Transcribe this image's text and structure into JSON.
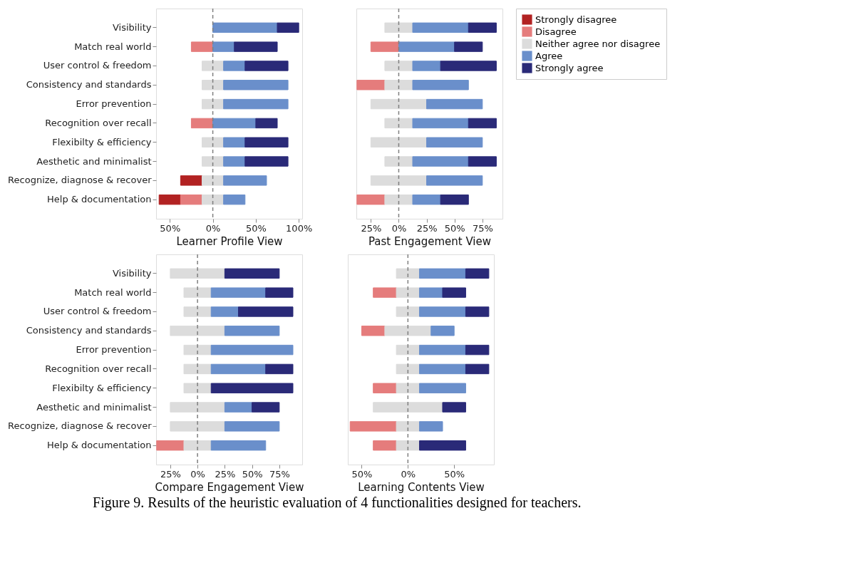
{
  "chart_data": [
    {
      "type": "bar",
      "orientation": "horizontal",
      "xlabel": "Learner Profile View",
      "categories": [
        "Visibility",
        "Match real world",
        "User control & freedom",
        "Consistency and standards",
        "Error prevention",
        "Recognition over recall",
        "Flexibilty & efficiency",
        "Aesthetic and minimalist",
        "Recognize, diagnose & recover",
        "Help & documentation"
      ],
      "xlim": [
        -66,
        104
      ],
      "xticks": [
        {
          "value": -50,
          "label": "50%"
        },
        {
          "value": 0,
          "label": "0%"
        },
        {
          "value": 50,
          "label": "50%"
        },
        {
          "value": 100,
          "label": "100%"
        }
      ],
      "grid": false,
      "legend": "right",
      "ref_lines": [
        {
          "axis": "x",
          "value": 0,
          "color": "#808080",
          "line_style": "dashed"
        }
      ],
      "series": [
        {
          "name": "Strongly disagree",
          "color": "#b22222",
          "values": [
            null,
            null,
            null,
            null,
            null,
            null,
            null,
            null,
            25,
            25
          ],
          "base": [
            null,
            null,
            null,
            null,
            null,
            null,
            null,
            null,
            -37.5,
            -62.5
          ]
        },
        {
          "name": "Disagree",
          "color": "#e57c7c",
          "values": [
            null,
            25,
            null,
            null,
            null,
            25,
            null,
            null,
            null,
            25
          ],
          "base": [
            null,
            -25,
            null,
            null,
            null,
            -25,
            null,
            null,
            null,
            -37.5
          ]
        },
        {
          "name": "Neither agree nor disagree",
          "color": "#dcdcdc",
          "values": [
            null,
            null,
            25,
            25,
            25,
            null,
            25,
            25,
            25,
            25
          ],
          "base": [
            null,
            null,
            -12.5,
            -12.5,
            -12.5,
            null,
            -12.5,
            -12.5,
            -12.5,
            -12.5
          ]
        },
        {
          "name": "Agree",
          "color": "#6a8fcb",
          "values": [
            75,
            25,
            25,
            75,
            75,
            50,
            25,
            25,
            50,
            25
          ],
          "base": [
            0,
            0,
            12.5,
            12.5,
            12.5,
            0,
            12.5,
            12.5,
            12.5,
            12.5
          ]
        },
        {
          "name": "Strongly agree",
          "color": "#2a2a78",
          "values": [
            25,
            50,
            50,
            null,
            null,
            25,
            50,
            50,
            null,
            null
          ],
          "base": [
            75,
            25,
            37.5,
            null,
            null,
            50,
            37.5,
            37.5,
            null,
            null
          ]
        }
      ]
    },
    {
      "type": "bar",
      "orientation": "horizontal",
      "xlabel": "Past Engagement View",
      "tick_labels": "x",
      "categories": [
        "Visibility",
        "Match real world",
        "User control & freedom",
        "Consistency and standards",
        "Error prevention",
        "Recognition over recall",
        "Flexibilty & efficiency",
        "Aesthetic and minimalist",
        "Recognize, diagnose & recover",
        "Help & documentation"
      ],
      "xlim": [
        -38,
        93
      ],
      "xticks": [
        {
          "value": -25,
          "label": "25%"
        },
        {
          "value": 0,
          "label": "0%"
        },
        {
          "value": 25,
          "label": "25%"
        },
        {
          "value": 50,
          "label": "50%"
        },
        {
          "value": 75,
          "label": "75%"
        }
      ],
      "grid": false,
      "legend": "right",
      "ref_lines": [
        {
          "axis": "x",
          "value": 0,
          "color": "#808080",
          "line_style": "dashed"
        }
      ],
      "series": [
        {
          "name": "Disagree",
          "color": "#e57c7c",
          "values": [
            null,
            25,
            null,
            25,
            null,
            null,
            null,
            null,
            null,
            25
          ],
          "base": [
            null,
            -25,
            null,
            -37.5,
            null,
            null,
            null,
            null,
            null,
            -37.5
          ]
        },
        {
          "name": "Neither agree nor disagree",
          "color": "#dcdcdc",
          "values": [
            25,
            null,
            25,
            25,
            50,
            25,
            50,
            25,
            50,
            25
          ],
          "base": [
            -12.5,
            null,
            -12.5,
            -12.5,
            -25,
            -12.5,
            -25,
            -12.5,
            -25,
            -12.5
          ]
        },
        {
          "name": "Agree",
          "color": "#6a8fcb",
          "values": [
            50,
            50,
            25,
            50,
            50,
            50,
            50,
            50,
            50,
            25
          ],
          "base": [
            12.5,
            0,
            12.5,
            12.5,
            25,
            12.5,
            25,
            12.5,
            25,
            12.5
          ]
        },
        {
          "name": "Strongly agree",
          "color": "#2a2a78",
          "values": [
            25,
            25,
            50,
            null,
            null,
            25,
            null,
            25,
            null,
            25
          ],
          "base": [
            62.5,
            50,
            37.5,
            null,
            null,
            62.5,
            null,
            62.5,
            null,
            37.5
          ]
        }
      ]
    },
    {
      "type": "bar",
      "orientation": "horizontal",
      "xlabel": "Compare Engagement View",
      "categories": [
        "Visibility",
        "Match real world",
        "User control & freedom",
        "Consistency and standards",
        "Error prevention",
        "Recognition over recall",
        "Flexibilty & efficiency",
        "Aesthetic and minimalist",
        "Recognize, diagnose & recover",
        "Help & documentation"
      ],
      "xlim": [
        -38,
        96
      ],
      "xticks": [
        {
          "value": -25,
          "label": "25%"
        },
        {
          "value": 0,
          "label": "0%"
        },
        {
          "value": 25,
          "label": "25%"
        },
        {
          "value": 50,
          "label": "50%"
        },
        {
          "value": 75,
          "label": "75%"
        }
      ],
      "grid": false,
      "legend": "right",
      "ref_lines": [
        {
          "axis": "x",
          "value": 0,
          "color": "#808080",
          "line_style": "dashed"
        }
      ],
      "series": [
        {
          "name": "Disagree",
          "color": "#e57c7c",
          "values": [
            null,
            null,
            null,
            null,
            null,
            null,
            null,
            null,
            null,
            25
          ],
          "base": [
            null,
            null,
            null,
            null,
            null,
            null,
            null,
            null,
            null,
            -37.5
          ]
        },
        {
          "name": "Neither agree nor disagree",
          "color": "#dcdcdc",
          "values": [
            50,
            25,
            25,
            50,
            25,
            25,
            25,
            50,
            50,
            25
          ],
          "base": [
            -25,
            -12.5,
            -12.5,
            -25,
            -12.5,
            -12.5,
            -12.5,
            -25,
            -25,
            -12.5
          ]
        },
        {
          "name": "Agree",
          "color": "#6a8fcb",
          "values": [
            null,
            50,
            25,
            50,
            75,
            50,
            null,
            25,
            50,
            50
          ],
          "base": [
            null,
            12.5,
            12.5,
            25,
            12.5,
            12.5,
            null,
            25,
            25,
            12.5
          ]
        },
        {
          "name": "Strongly agree",
          "color": "#2a2a78",
          "values": [
            50,
            25,
            50,
            null,
            null,
            25,
            75,
            25,
            null,
            null
          ],
          "base": [
            25,
            62.5,
            37.5,
            null,
            null,
            62.5,
            12.5,
            50,
            null,
            null
          ]
        }
      ]
    },
    {
      "type": "bar",
      "orientation": "horizontal",
      "xlabel": "Learning Contents View",
      "tick_labels": "x",
      "categories": [
        "Visibility",
        "Match real world",
        "User control & freedom",
        "Consistency and standards",
        "Error prevention",
        "Recognition over recall",
        "Flexibilty & efficiency",
        "Aesthetic and minimalist",
        "Recognize, diagnose & recover",
        "Help & documentation"
      ],
      "xlim": [
        -65,
        93
      ],
      "xticks": [
        {
          "value": -50,
          "label": "50%"
        },
        {
          "value": 0,
          "label": "0%"
        },
        {
          "value": 50,
          "label": "50%"
        }
      ],
      "grid": false,
      "legend": "right",
      "annotations": [
        "Figure 9. Results of the heuristic evaluation of 4 functionalities designed for teachers."
      ],
      "ref_lines": [
        {
          "axis": "x",
          "value": 0,
          "color": "#808080",
          "line_style": "dashed"
        }
      ],
      "series": [
        {
          "name": "Disagree",
          "color": "#e57c7c",
          "values": [
            null,
            25,
            null,
            25,
            null,
            null,
            25,
            null,
            50,
            25
          ],
          "base": [
            null,
            -37.5,
            null,
            -50,
            null,
            null,
            -37.5,
            null,
            -62.5,
            -37.5
          ]
        },
        {
          "name": "Neither agree nor disagree",
          "color": "#dcdcdc",
          "values": [
            25,
            25,
            25,
            50,
            25,
            25,
            25,
            75,
            25,
            25
          ],
          "base": [
            -12.5,
            -12.5,
            -12.5,
            -25,
            -12.5,
            -12.5,
            -12.5,
            -37.5,
            -12.5,
            -12.5
          ]
        },
        {
          "name": "Agree",
          "color": "#6a8fcb",
          "values": [
            50,
            25,
            50,
            25,
            50,
            50,
            50,
            null,
            25,
            null
          ],
          "base": [
            12.5,
            12.5,
            12.5,
            25,
            12.5,
            12.5,
            12.5,
            null,
            12.5,
            null
          ]
        },
        {
          "name": "Strongly agree",
          "color": "#2a2a78",
          "values": [
            25,
            25,
            25,
            null,
            25,
            25,
            null,
            25,
            null,
            50
          ],
          "base": [
            62.5,
            37.5,
            62.5,
            null,
            62.5,
            62.5,
            null,
            37.5,
            null,
            12.5
          ]
        }
      ]
    }
  ]
}
